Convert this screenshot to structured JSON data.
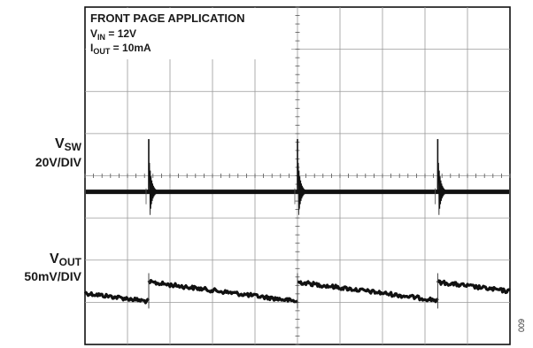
{
  "chart_data": {
    "type": "line",
    "title": "FRONT PAGE APPLICATION",
    "subtitle_lines": [
      {
        "symbol": "V",
        "sub": "IN",
        "rest": " = 12V"
      },
      {
        "symbol": "I",
        "sub": "OUT",
        "rest": " = 10mA"
      }
    ],
    "grid": {
      "divisions_x": 10,
      "divisions_y": 8,
      "minor_ticks_per_div": 5,
      "visible": true
    },
    "x": {
      "range_div": [
        0,
        10
      ]
    },
    "series": [
      {
        "name": "V_SW",
        "label_symbol": "V",
        "label_sub": "SW",
        "scale": "20V/DIV",
        "color": "#111111",
        "baseline_div": 4.38,
        "spike_times_div": [
          1.5,
          5.0,
          8.3
        ],
        "spike_height_div": 1.25,
        "ringing": true
      },
      {
        "name": "V_OUT",
        "label_symbol": "V",
        "label_sub": "OUT",
        "scale": "50mV/DIV",
        "color": "#111111",
        "step_times_div": [
          1.5,
          5.0,
          8.3
        ],
        "ramp_start_div": 6.52,
        "ramp_end_div": 6.98,
        "x_start_div": 0.0,
        "x_end_div": 10.0
      }
    ]
  },
  "figure_id": "009"
}
